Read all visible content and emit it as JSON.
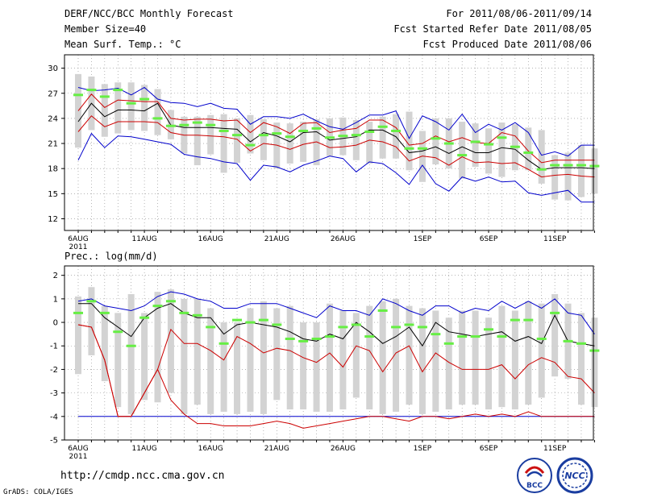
{
  "header": {
    "title": "DERF/NCC/BCC Monthly Forecast",
    "member_size": "Member Size=40",
    "variable": "Mean Surf. Temp.: °C",
    "period": "For 2011/08/06-2011/09/14",
    "started": "Fcst Started Refer Date 2011/08/05",
    "produced": "Fcst Produced Date 2011/08/06"
  },
  "footer": {
    "url": "http://cmdp.ncc.cma.gov.cn",
    "credit": "GrADS: COLA/IGES",
    "logo_left_text": "BCC",
    "logo_right_text": "NCC"
  },
  "colors": {
    "box": "#d3d3d3",
    "median": "#66ee44",
    "envelope": "#0000cc",
    "std": "#cc0000",
    "mean": "#000000",
    "grid": "#888888"
  },
  "chart_data": [
    {
      "type": "box",
      "title": "Mean Surf. Temp.: °C",
      "ylim": [
        10.6,
        31.6
      ],
      "yticks": [
        12,
        15,
        18,
        21,
        24,
        27,
        30
      ],
      "x_start_day": 0,
      "days": 40,
      "xtick_labels": [
        {
          "day": 0,
          "label": "6AUG",
          "sub": "2011"
        },
        {
          "day": 5,
          "label": "11AUG"
        },
        {
          "day": 10,
          "label": "16AUG"
        },
        {
          "day": 15,
          "label": "21AUG"
        },
        {
          "day": 20,
          "label": "26AUG"
        },
        {
          "day": 26,
          "label": "1SEP"
        },
        {
          "day": 31,
          "label": "6SEP"
        },
        {
          "day": 36,
          "label": "11SEP"
        }
      ],
      "box_low": [
        20.5,
        22.6,
        21.8,
        22.2,
        22.6,
        22.5,
        22.0,
        21.5,
        19.8,
        18.4,
        19.7,
        17.5,
        18.7,
        19.8,
        19.0,
        18.0,
        18.6,
        18.8,
        18.4,
        19.5,
        19.6,
        19.0,
        18.6,
        19.2,
        19.2,
        17.8,
        16.4,
        18.5,
        18.0,
        16.8,
        18.2,
        17.4,
        17.0,
        17.8,
        17.8,
        16.2,
        14.3,
        14.2,
        14.6,
        15.0
      ],
      "box_high": [
        29.3,
        29.0,
        28.1,
        28.3,
        28.3,
        28.0,
        27.5,
        25.0,
        24.2,
        24.2,
        24.4,
        24.5,
        24.0,
        24.4,
        23.9,
        23.5,
        23.4,
        23.6,
        23.9,
        24.0,
        24.1,
        23.8,
        23.6,
        24.2,
        24.5,
        24.8,
        22.5,
        24.0,
        24.0,
        23.6,
        23.4,
        22.8,
        23.5,
        23.3,
        22.9,
        22.6,
        19.6,
        19.9,
        20.8,
        20.4
      ],
      "median": [
        26.8,
        27.4,
        26.6,
        27.4,
        25.8,
        26.3,
        24.0,
        23.1,
        23.2,
        23.5,
        23.2,
        22.5,
        22.0,
        20.8,
        22.0,
        22.2,
        21.8,
        22.5,
        22.8,
        21.7,
        21.9,
        22.0,
        22.4,
        23.0,
        22.5,
        20.4,
        20.4,
        21.6,
        21.0,
        19.6,
        21.2,
        20.9,
        21.7,
        20.6,
        19.9,
        17.9,
        18.4,
        18.4,
        18.4,
        18.3
      ],
      "series": [
        {
          "name": "max",
          "values": [
            19.0,
            22.2,
            20.5,
            21.9,
            21.8,
            21.5,
            21.2,
            20.9,
            19.7,
            19.4,
            19.2,
            18.8,
            18.6,
            16.6,
            18.4,
            18.2,
            17.6,
            18.4,
            18.9,
            19.5,
            19.2,
            17.6,
            18.8,
            18.6,
            17.5,
            16.1,
            18.4,
            16.2,
            15.3,
            17.0,
            16.5,
            17.0,
            16.4,
            16.5,
            15.1,
            14.8,
            15.1,
            15.4,
            14.0,
            14.0
          ]
        },
        {
          "name": "p1",
          "values": [
            22.4,
            24.3,
            23.0,
            23.6,
            23.6,
            23.6,
            23.5,
            22.3,
            22.0,
            22.0,
            21.9,
            21.8,
            21.5,
            20.1,
            21.0,
            20.8,
            20.3,
            20.9,
            21.2,
            20.5,
            20.6,
            20.8,
            21.4,
            21.2,
            20.6,
            18.9,
            19.5,
            19.3,
            18.4,
            19.4,
            18.7,
            18.8,
            18.6,
            18.7,
            17.9,
            17.0,
            17.2,
            17.3,
            17.1,
            17.0
          ]
        },
        {
          "name": "mean",
          "values": [
            23.6,
            25.8,
            24.2,
            25.0,
            25.0,
            24.9,
            25.8,
            23.2,
            22.9,
            22.9,
            22.9,
            22.8,
            22.7,
            21.2,
            22.3,
            21.9,
            21.2,
            22.3,
            22.4,
            21.4,
            21.6,
            21.8,
            22.6,
            22.6,
            21.8,
            19.9,
            20.1,
            20.6,
            19.8,
            20.6,
            19.9,
            19.9,
            20.5,
            20.3,
            19.0,
            17.9,
            18.1,
            18.1,
            18.1,
            18.0
          ]
        },
        {
          "name": "p2",
          "values": [
            24.9,
            26.9,
            25.3,
            26.2,
            26.1,
            26.0,
            26.0,
            24.0,
            23.8,
            23.9,
            23.9,
            23.7,
            23.8,
            22.3,
            23.5,
            23.0,
            22.2,
            23.4,
            23.5,
            22.3,
            22.6,
            22.8,
            23.8,
            23.8,
            22.9,
            20.8,
            21.0,
            21.9,
            21.2,
            21.7,
            21.1,
            21.0,
            22.3,
            21.9,
            20.1,
            18.7,
            19.0,
            19.0,
            19.0,
            19.0
          ]
        },
        {
          "name": "min",
          "values": [
            27.7,
            27.3,
            27.4,
            27.6,
            26.8,
            27.7,
            26.3,
            25.9,
            25.8,
            25.4,
            25.8,
            25.2,
            25.1,
            23.3,
            24.2,
            24.2,
            24.0,
            24.5,
            23.7,
            23.0,
            22.7,
            23.5,
            24.4,
            24.4,
            24.9,
            21.6,
            24.3,
            23.6,
            22.6,
            24.5,
            22.3,
            23.3,
            22.6,
            23.5,
            22.3,
            19.6,
            20.0,
            19.5,
            20.8,
            20.8
          ]
        }
      ],
      "grid": true
    },
    {
      "type": "box",
      "title": "Prec.: log(mm/d)",
      "ylim": [
        -5,
        2.4
      ],
      "yticks": [
        -5,
        -4,
        -3,
        -2,
        -1,
        0,
        1,
        2
      ],
      "x_start_day": 0,
      "days": 40,
      "xtick_labels": [
        {
          "day": 0,
          "label": "6AUG",
          "sub": "2011"
        },
        {
          "day": 5,
          "label": "11AUG"
        },
        {
          "day": 10,
          "label": "16AUG"
        },
        {
          "day": 15,
          "label": "21AUG"
        },
        {
          "day": 20,
          "label": "26AUG"
        },
        {
          "day": 26,
          "label": "1SEP"
        },
        {
          "day": 31,
          "label": "6SEP"
        },
        {
          "day": 36,
          "label": "11SEP"
        }
      ],
      "box_low": [
        -2.2,
        -1.4,
        -2.5,
        -3.6,
        -3.9,
        -3.3,
        -3.4,
        -3.0,
        -3.9,
        -3.5,
        -3.9,
        -3.8,
        -3.9,
        -3.8,
        -3.9,
        -3.3,
        -3.7,
        -3.7,
        -3.8,
        -3.8,
        -3.7,
        -3.2,
        -3.7,
        -3.9,
        -3.8,
        -3.5,
        -3.9,
        -3.8,
        -3.7,
        -3.5,
        -3.5,
        -3.7,
        -3.6,
        -3.7,
        -3.5,
        -3.2,
        -2.3,
        -2.4,
        -3.5,
        -3.6
      ],
      "box_high": [
        1.1,
        1.5,
        0.7,
        0.4,
        1.2,
        0.4,
        1.3,
        1.4,
        1.0,
        1.0,
        0.6,
        0.0,
        0.0,
        0.6,
        0.9,
        0.6,
        0.7,
        0.0,
        0.0,
        0.8,
        0.5,
        0.4,
        0.7,
        0.9,
        1.0,
        0.7,
        0.6,
        0.5,
        0.2,
        0.5,
        0.5,
        0.2,
        0.7,
        0.5,
        0.9,
        0.8,
        1.2,
        0.8,
        0.4,
        0.2
      ],
      "median": [
        0.4,
        0.9,
        0.4,
        -0.4,
        -1.0,
        0.2,
        0.7,
        0.9,
        0.4,
        0.3,
        -0.2,
        -0.9,
        0.1,
        0.0,
        0.1,
        -0.1,
        -0.7,
        -0.8,
        -0.7,
        -0.6,
        -0.2,
        -0.1,
        -0.6,
        0.5,
        -0.2,
        -0.1,
        -0.2,
        -0.5,
        -0.9,
        -0.6,
        -0.6,
        -0.3,
        -0.6,
        0.1,
        0.1,
        -0.7,
        0.4,
        -0.8,
        -0.9,
        -1.2
      ],
      "series": [
        {
          "name": "min",
          "values": [
            -4.0,
            -4.0,
            -4.0,
            -4.0,
            -4.0,
            -4.0,
            -4.0,
            -4.0,
            -4.0,
            -4.0,
            -4.0,
            -4.0,
            -4.0,
            -4.0,
            -4.0,
            -4.0,
            -4.0,
            -4.0,
            -4.0,
            -4.0,
            -4.0,
            -4.0,
            -4.0,
            -4.0,
            -4.0,
            -4.0,
            -4.0,
            -4.0,
            -4.0,
            -4.0,
            -4.0,
            -4.0,
            -4.0,
            -4.0,
            -4.0,
            -4.0,
            -4.0,
            -4.0,
            -4.0,
            -4.0
          ]
        },
        {
          "name": "p1",
          "values": [
            -0.1,
            -0.2,
            -1.6,
            -4.0,
            -4.0,
            -3.0,
            -2.0,
            -3.3,
            -3.9,
            -4.3,
            -4.3,
            -4.4,
            -4.4,
            -4.4,
            -4.3,
            -4.2,
            -4.3,
            -4.5,
            -4.4,
            -4.3,
            -4.2,
            -4.1,
            -4.0,
            -4.0,
            -4.1,
            -4.2,
            -4.0,
            -4.0,
            -4.1,
            -4.0,
            -3.9,
            -4.0,
            -3.9,
            -4.0,
            -3.8,
            -4.0,
            -4.0,
            -4.0,
            -4.0,
            -4.0
          ]
        },
        {
          "name": "mean",
          "values": [
            0.8,
            0.8,
            0.2,
            -0.2,
            -0.6,
            0.2,
            0.6,
            0.8,
            0.4,
            0.2,
            0.2,
            -0.5,
            -0.1,
            0.0,
            -0.1,
            -0.2,
            -0.4,
            -0.7,
            -0.8,
            -0.5,
            -0.7,
            0.0,
            -0.4,
            -0.9,
            -0.6,
            -0.2,
            -1.0,
            0.0,
            -0.4,
            -0.5,
            -0.6,
            -0.5,
            -0.4,
            -0.8,
            -0.6,
            -0.9,
            0.3,
            -0.8,
            -0.9,
            -1.0
          ]
        },
        {
          "name": "p2",
          "values": [
            -0.1,
            -0.2,
            -1.6,
            -4.0,
            -4.0,
            -3.0,
            -2.0,
            -0.3,
            -0.9,
            -0.9,
            -1.2,
            -1.6,
            -0.6,
            -0.9,
            -1.3,
            -1.1,
            -1.2,
            -1.5,
            -1.7,
            -1.3,
            -1.9,
            -1.0,
            -1.2,
            -2.1,
            -1.3,
            -1.0,
            -2.1,
            -1.3,
            -1.7,
            -2.0,
            -2.0,
            -2.0,
            -1.8,
            -2.4,
            -1.8,
            -1.5,
            -1.7,
            -2.3,
            -2.4,
            -3.0
          ]
        },
        {
          "name": "max",
          "values": [
            0.9,
            1.0,
            0.7,
            0.6,
            0.5,
            0.7,
            1.1,
            1.3,
            1.2,
            1.0,
            0.9,
            0.6,
            0.6,
            0.8,
            0.8,
            0.8,
            0.6,
            0.4,
            0.2,
            0.7,
            0.5,
            0.5,
            0.3,
            1.0,
            0.8,
            0.5,
            0.3,
            0.7,
            0.7,
            0.4,
            0.6,
            0.5,
            0.9,
            0.6,
            0.9,
            0.6,
            1.0,
            0.4,
            0.3,
            -0.5
          ]
        }
      ],
      "grid": true
    }
  ]
}
